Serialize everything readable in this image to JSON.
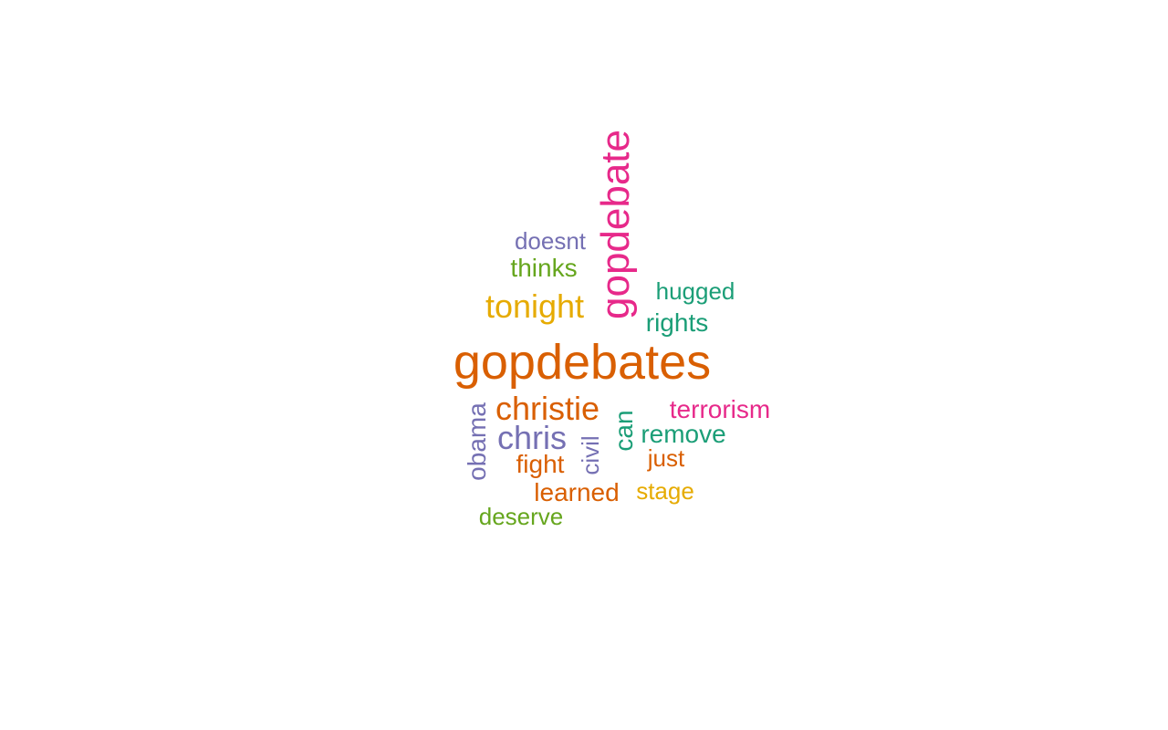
{
  "palette": {
    "teal": "#1b9e77",
    "orange": "#d95f02",
    "purple": "#7570b3",
    "magenta": "#e7298a",
    "green": "#66a61e",
    "gold": "#e6ab02"
  },
  "words": {
    "gopdebates": {
      "text": "gopdebates",
      "color": "#d95f02"
    },
    "gopdebate": {
      "text": "gopdebate",
      "color": "#e7298a"
    },
    "doesnt": {
      "text": "doesnt",
      "color": "#7570b3"
    },
    "thinks": {
      "text": "thinks",
      "color": "#66a61e"
    },
    "tonight": {
      "text": "tonight",
      "color": "#e6ab02"
    },
    "hugged": {
      "text": "hugged",
      "color": "#1b9e77"
    },
    "rights": {
      "text": "rights",
      "color": "#1b9e77"
    },
    "christie": {
      "text": "christie",
      "color": "#d95f02"
    },
    "obama": {
      "text": "obama",
      "color": "#7570b3"
    },
    "chris": {
      "text": "chris",
      "color": "#7570b3"
    },
    "can": {
      "text": "can",
      "color": "#1b9e77"
    },
    "terrorism": {
      "text": "terrorism",
      "color": "#e7298a"
    },
    "remove": {
      "text": "remove",
      "color": "#1b9e77"
    },
    "civil": {
      "text": "civil",
      "color": "#7570b3"
    },
    "fight": {
      "text": "fight",
      "color": "#d95f02"
    },
    "just": {
      "text": "just",
      "color": "#d95f02"
    },
    "learned": {
      "text": "learned",
      "color": "#d95f02"
    },
    "stage": {
      "text": "stage",
      "color": "#e6ab02"
    },
    "deserve": {
      "text": "deserve",
      "color": "#66a61e"
    }
  }
}
